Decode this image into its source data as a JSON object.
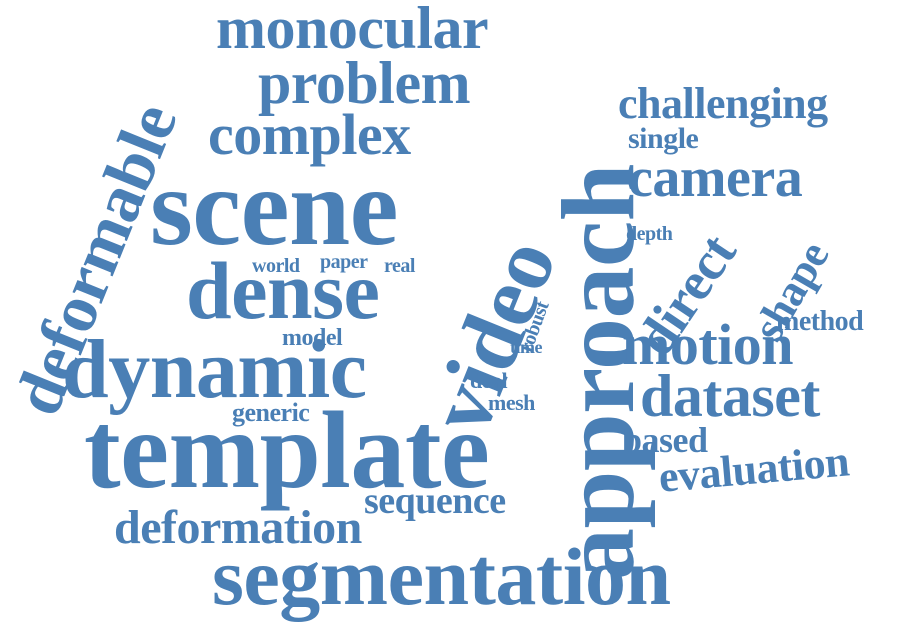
{
  "word_color": "#4a7fb5",
  "words": {
    "monocular": "monocular",
    "problem": "problem",
    "complex": "complex",
    "scene": "scene",
    "deformable": "deformable",
    "dense": "dense",
    "dynamic": "dynamic",
    "template": "template",
    "video": "video",
    "approach": "approach",
    "challenging": "challenging",
    "single": "single",
    "camera": "camera",
    "depth": "depth",
    "direct": "direct",
    "shape": "shape",
    "method": "method",
    "motion": "motion",
    "dataset": "dataset",
    "based": "based",
    "evaluation": "evaluation",
    "world": "world",
    "paper": "paper",
    "real": "real",
    "robust": "robust",
    "model": "model",
    "time": "time",
    "deal": "deal",
    "mesh": "mesh",
    "generic": "generic",
    "sequence": "sequence",
    "deformation": "deformation",
    "segmentation": "segmentation"
  }
}
